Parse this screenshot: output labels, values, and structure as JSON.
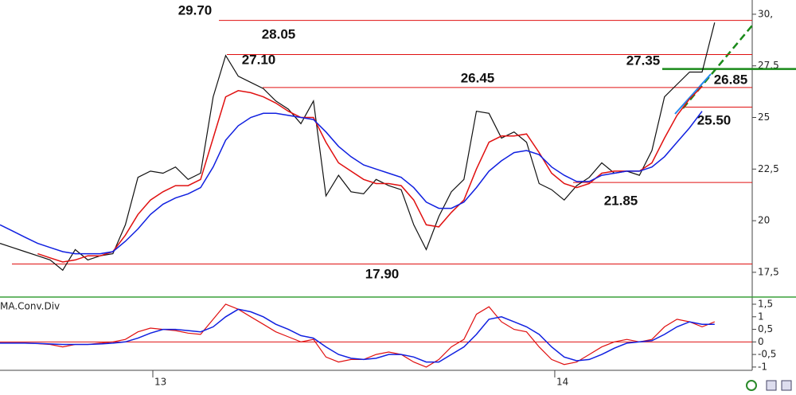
{
  "chart_data": [
    {
      "type": "line",
      "x": [
        0,
        1,
        2,
        3,
        4,
        5,
        6,
        7,
        8,
        9,
        10,
        11,
        12,
        13,
        14,
        15,
        16,
        17,
        18,
        19,
        20,
        21,
        22,
        23,
        24,
        25,
        26,
        27,
        28,
        29,
        30,
        31,
        32,
        33,
        34,
        35,
        36,
        37,
        38,
        39,
        40,
        41,
        42,
        43,
        44,
        45,
        46,
        47,
        48,
        49,
        50,
        51,
        52,
        53,
        54,
        55,
        56,
        57
      ],
      "series": [
        {
          "color": "#111111",
          "values": [
            18.9,
            18.7,
            18.5,
            18.3,
            18.1,
            17.6,
            18.6,
            18.1,
            18.3,
            18.4,
            19.8,
            22.1,
            22.4,
            22.3,
            22.6,
            22.0,
            22.3,
            26.0,
            28.0,
            27.0,
            26.7,
            26.4,
            25.8,
            25.4,
            24.7,
            25.8,
            21.2,
            22.2,
            21.4,
            21.3,
            22.0,
            21.7,
            21.5,
            19.8,
            18.6,
            20.2,
            21.4,
            22.0,
            25.3,
            25.2,
            24.0,
            24.3,
            23.8,
            21.8,
            21.5,
            21.0,
            21.7,
            22.1,
            22.8,
            22.3,
            22.4,
            22.2,
            23.4,
            26.0,
            26.6,
            27.2,
            27.2,
            29.6
          ]
        },
        {
          "color": "#e01010",
          "values": [
            null,
            null,
            null,
            18.4,
            18.2,
            18.0,
            18.1,
            18.3,
            18.3,
            18.5,
            19.3,
            20.3,
            21.0,
            21.4,
            21.7,
            21.7,
            22.0,
            24.0,
            26.0,
            26.3,
            26.2,
            26.0,
            25.7,
            25.3,
            25.0,
            25.0,
            23.8,
            22.8,
            22.4,
            22.0,
            21.8,
            21.8,
            21.7,
            21.0,
            19.8,
            19.7,
            20.4,
            21.0,
            22.5,
            23.8,
            24.1,
            24.1,
            24.2,
            23.3,
            22.3,
            21.8,
            21.6,
            21.8,
            22.3,
            22.4,
            22.4,
            22.4,
            22.8,
            24.0,
            25.1,
            25.9,
            26.5,
            null
          ]
        },
        {
          "color": "#1020e0",
          "values": [
            19.8,
            19.5,
            19.2,
            18.9,
            18.7,
            18.5,
            18.4,
            18.4,
            18.4,
            18.5,
            19.0,
            19.6,
            20.3,
            20.8,
            21.1,
            21.3,
            21.6,
            22.6,
            23.9,
            24.6,
            25.0,
            25.2,
            25.2,
            25.1,
            25.0,
            24.9,
            24.3,
            23.6,
            23.1,
            22.7,
            22.5,
            22.3,
            22.1,
            21.6,
            20.9,
            20.6,
            20.6,
            20.9,
            21.6,
            22.4,
            22.9,
            23.3,
            23.4,
            23.2,
            22.6,
            22.2,
            21.9,
            21.9,
            22.2,
            22.3,
            22.4,
            22.4,
            22.6,
            23.1,
            23.8,
            24.5,
            25.3,
            null
          ]
        }
      ],
      "xlim": [
        0,
        60
      ],
      "xticks": [
        {
          "value": 12.19,
          "label": "13"
        },
        {
          "value": 44.25,
          "label": "14"
        }
      ],
      "ylim": [
        16.34,
        30.69
      ],
      "yticks": [
        {
          "value": 30,
          "label": "30,"
        },
        {
          "value": 27.5,
          "label": "27,5"
        },
        25,
        {
          "value": 22.5,
          "label": "22,5"
        },
        20,
        {
          "value": 17.5,
          "label": "17,5"
        }
      ],
      "levels": [
        {
          "value": 29.7,
          "label": "29.70"
        },
        {
          "value": 28.05,
          "label": "28.05"
        },
        {
          "value": 26.45,
          "label": "26.45"
        },
        {
          "value": 25.5,
          "label": "25.50"
        },
        {
          "value": 21.85,
          "label": "21.85"
        },
        {
          "value": 17.9,
          "label": "17.90"
        }
      ],
      "level_color": "#e01010",
      "annotations": [
        {
          "value": 27.1,
          "label": "27.10"
        },
        {
          "value": 26.85,
          "label": "26.85"
        }
      ],
      "support_line": {
        "value": 27.35,
        "label": "27.35",
        "color": "#1a8a1a"
      }
    },
    {
      "type": "line",
      "title": "MA.Conv.Div",
      "x": [
        0,
        1,
        2,
        3,
        4,
        5,
        6,
        7,
        8,
        9,
        10,
        11,
        12,
        13,
        14,
        15,
        16,
        17,
        18,
        19,
        20,
        21,
        22,
        23,
        24,
        25,
        26,
        27,
        28,
        29,
        30,
        31,
        32,
        33,
        34,
        35,
        36,
        37,
        38,
        39,
        40,
        41,
        42,
        43,
        44,
        45,
        46,
        47,
        48,
        49,
        50,
        51,
        52,
        53,
        54,
        55,
        56,
        57
      ],
      "series": [
        {
          "color": "#e01010",
          "values": [
            -0.05,
            -0.05,
            -0.05,
            -0.07,
            -0.1,
            -0.2,
            -0.1,
            -0.1,
            -0.05,
            0,
            0.1,
            0.4,
            0.55,
            0.5,
            0.45,
            0.35,
            0.3,
            0.9,
            1.5,
            1.3,
            1.0,
            0.7,
            0.4,
            0.2,
            0,
            0.1,
            -0.6,
            -0.8,
            -0.7,
            -0.7,
            -0.5,
            -0.4,
            -0.5,
            -0.8,
            -1.0,
            -0.7,
            -0.2,
            0.1,
            1.1,
            1.4,
            0.8,
            0.5,
            0.4,
            -0.2,
            -0.7,
            -0.9,
            -0.8,
            -0.5,
            -0.2,
            0,
            0.1,
            0,
            0.1,
            0.6,
            0.9,
            0.8,
            0.6,
            0.8
          ]
        },
        {
          "color": "#1020e0",
          "values": [
            -0.05,
            -0.05,
            -0.05,
            -0.06,
            -0.08,
            -0.1,
            -0.1,
            -0.1,
            -0.08,
            -0.05,
            0,
            0.15,
            0.35,
            0.5,
            0.5,
            0.45,
            0.4,
            0.6,
            1.0,
            1.3,
            1.2,
            1.0,
            0.7,
            0.5,
            0.25,
            0.15,
            -0.2,
            -0.5,
            -0.65,
            -0.7,
            -0.65,
            -0.5,
            -0.5,
            -0.6,
            -0.8,
            -0.8,
            -0.5,
            -0.2,
            0.3,
            0.9,
            1.0,
            0.8,
            0.6,
            0.3,
            -0.2,
            -0.6,
            -0.75,
            -0.7,
            -0.5,
            -0.25,
            -0.05,
            0,
            0.05,
            0.3,
            0.6,
            0.8,
            0.7,
            0.7
          ]
        }
      ],
      "xlim": [
        0,
        60
      ],
      "ylim": [
        -1.13,
        1.69
      ],
      "yticks": [
        {
          "value": 1.5,
          "label": "1,5"
        },
        1,
        {
          "value": 0.5,
          "label": "0,5"
        },
        0,
        {
          "value": -0.5,
          "label": "-0,5"
        },
        -1
      ],
      "baseline": 0,
      "baseline_color": "#e01010"
    }
  ]
}
